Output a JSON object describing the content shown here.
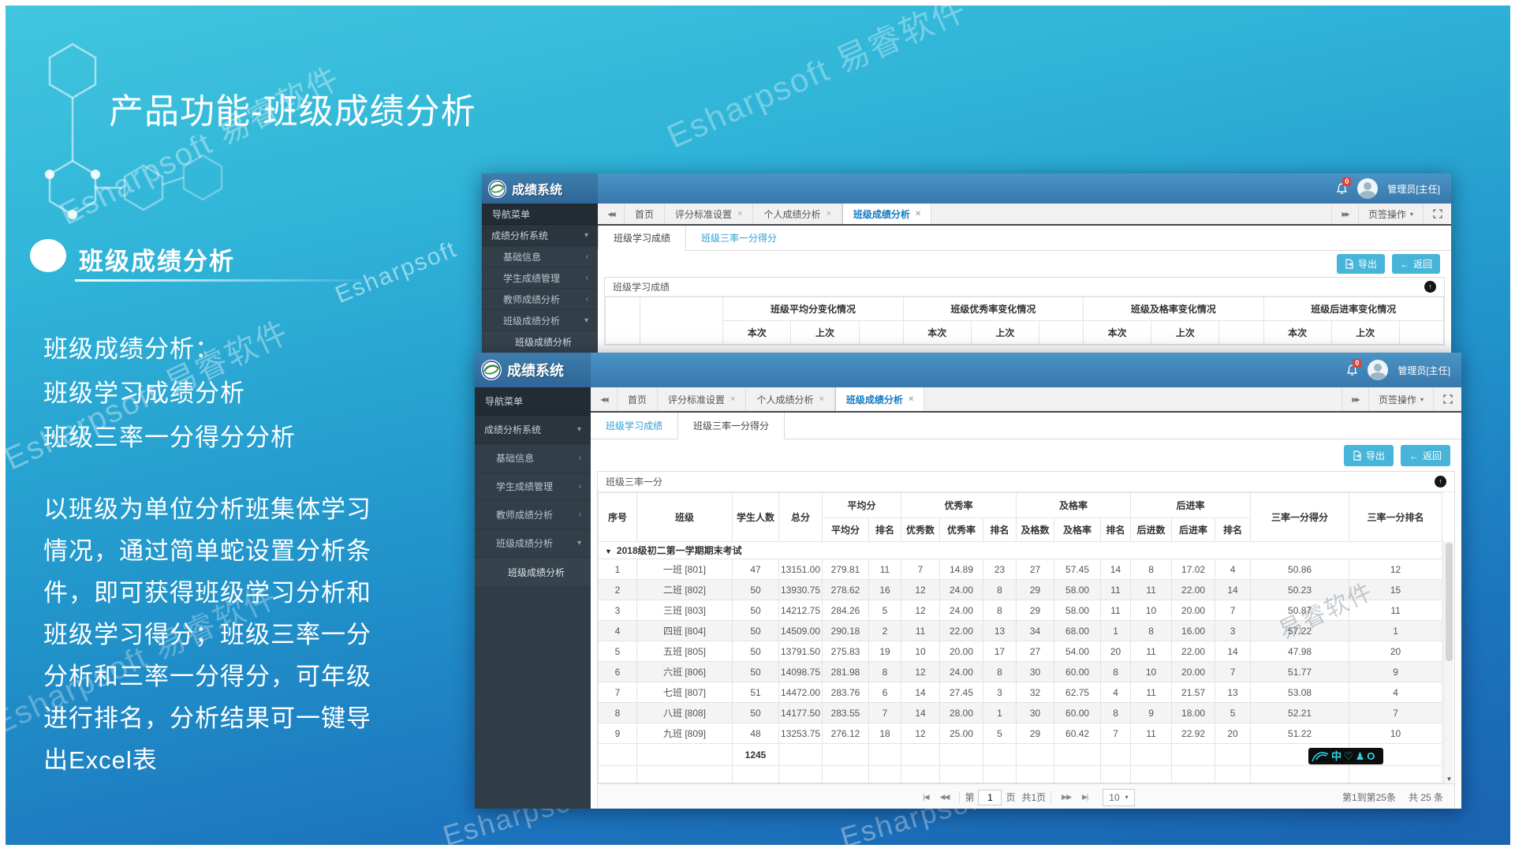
{
  "slide": {
    "title": "产品功能-班级成绩分析",
    "heading": "班级成绩分析",
    "intro": "班级成绩分析：\n班级学习成绩分析\n班级三率一分得分分析",
    "body": "以班级为单位分析班集体学习\n情况，通过简单蛇设置分析条\n件，即可获得班级学习分析和\n班级学习得分；班级三率一分\n分析和三率一分得分，可年级\n进行排名，分析结果可一键导\n出Excel表",
    "watermark": "Esharpsoft 易睿软件",
    "watermark_short": "Esharpsoft",
    "watermark_cn": "易睿软件",
    "sticker": "中♡♟O"
  },
  "app": {
    "brand": "成绩系统",
    "nav_title": "导航菜单",
    "menu_root": "成绩分析系统",
    "menu_items": [
      "基础信息",
      "学生成绩管理",
      "教师成绩分析",
      "班级成绩分析"
    ],
    "menu_sub": "班级成绩分析",
    "tabs": [
      "首页",
      "评分标准设置",
      "个人成绩分析",
      "班级成绩分析"
    ],
    "tab_ops": "页签操作",
    "user": "管理员[主任]",
    "badge": "0",
    "export_label": "导出",
    "back_label": "返回",
    "subtab_study": "班级学习成绩",
    "subtab_rate": "班级三率一分得分",
    "collapse_icon": "↑",
    "close_icon": "×",
    "scroll_left_icon": "◀◀",
    "scroll_right_icon": "▶▶",
    "caret_down": "▾",
    "chev_collapsed": "‹",
    "chev_expanded": "▾",
    "back_arrow": "←"
  },
  "win1": {
    "panel_title": "班级学习成绩",
    "groups": [
      "班级平均分变化情况",
      "班级优秀率变化情况",
      "班级及格率变化情况",
      "班级后进率变化情况"
    ],
    "col_current": "本次",
    "col_previous": "上次"
  },
  "win2": {
    "panel_title": "班级三率一分",
    "header_groups": [
      "平均分",
      "优秀率",
      "及格率",
      "后进率"
    ],
    "columns": [
      "序号",
      "班级",
      "学生人数",
      "总分",
      "平均分",
      "排名",
      "优秀数",
      "优秀率",
      "排名",
      "及格数",
      "及格率",
      "排名",
      "后进数",
      "后进率",
      "排名",
      "三率一分得分",
      "三率一分排名"
    ],
    "exam_group": "2018级初二第一学期期末考试",
    "rows": [
      [
        "1",
        "一班  [801]",
        "47",
        "13151.00",
        "279.81",
        "11",
        "7",
        "14.89",
        "23",
        "27",
        "57.45",
        "14",
        "8",
        "17.02",
        "4",
        "50.86",
        "12"
      ],
      [
        "2",
        "二班  [802]",
        "50",
        "13930.75",
        "278.62",
        "16",
        "12",
        "24.00",
        "8",
        "29",
        "58.00",
        "11",
        "11",
        "22.00",
        "14",
        "50.23",
        "15"
      ],
      [
        "3",
        "三班  [803]",
        "50",
        "14212.75",
        "284.26",
        "5",
        "12",
        "24.00",
        "8",
        "29",
        "58.00",
        "11",
        "10",
        "20.00",
        "7",
        "50.87",
        "11"
      ],
      [
        "4",
        "四班  [804]",
        "50",
        "14509.00",
        "290.18",
        "2",
        "11",
        "22.00",
        "13",
        "34",
        "68.00",
        "1",
        "8",
        "16.00",
        "3",
        "57.22",
        "1"
      ],
      [
        "5",
        "五班  [805]",
        "50",
        "13791.50",
        "275.83",
        "19",
        "10",
        "20.00",
        "17",
        "27",
        "54.00",
        "20",
        "11",
        "22.00",
        "14",
        "47.98",
        "20"
      ],
      [
        "6",
        "六班  [806]",
        "50",
        "14098.75",
        "281.98",
        "8",
        "12",
        "24.00",
        "8",
        "30",
        "60.00",
        "8",
        "10",
        "20.00",
        "7",
        "51.77",
        "9"
      ],
      [
        "7",
        "七班  [807]",
        "51",
        "14472.00",
        "283.76",
        "6",
        "14",
        "27.45",
        "3",
        "32",
        "62.75",
        "4",
        "11",
        "21.57",
        "13",
        "53.08",
        "4"
      ],
      [
        "8",
        "八班  [808]",
        "50",
        "14177.50",
        "283.55",
        "7",
        "14",
        "28.00",
        "1",
        "30",
        "60.00",
        "8",
        "9",
        "18.00",
        "5",
        "52.21",
        "7"
      ],
      [
        "9",
        "九班  [809]",
        "48",
        "13253.75",
        "276.12",
        "18",
        "12",
        "25.00",
        "5",
        "29",
        "60.42",
        "7",
        "11",
        "22.92",
        "20",
        "51.22",
        "10"
      ]
    ],
    "total_students": "1245",
    "pager": {
      "first": "|◀",
      "prev": "◀◀",
      "page_prefix": "第",
      "page_value": "1",
      "page_mid": "页",
      "total_pages": "共1页",
      "next": "▶▶",
      "last": "▶|",
      "page_size": "10",
      "range": "第1到第25条",
      "total": "共 25 条"
    }
  }
}
